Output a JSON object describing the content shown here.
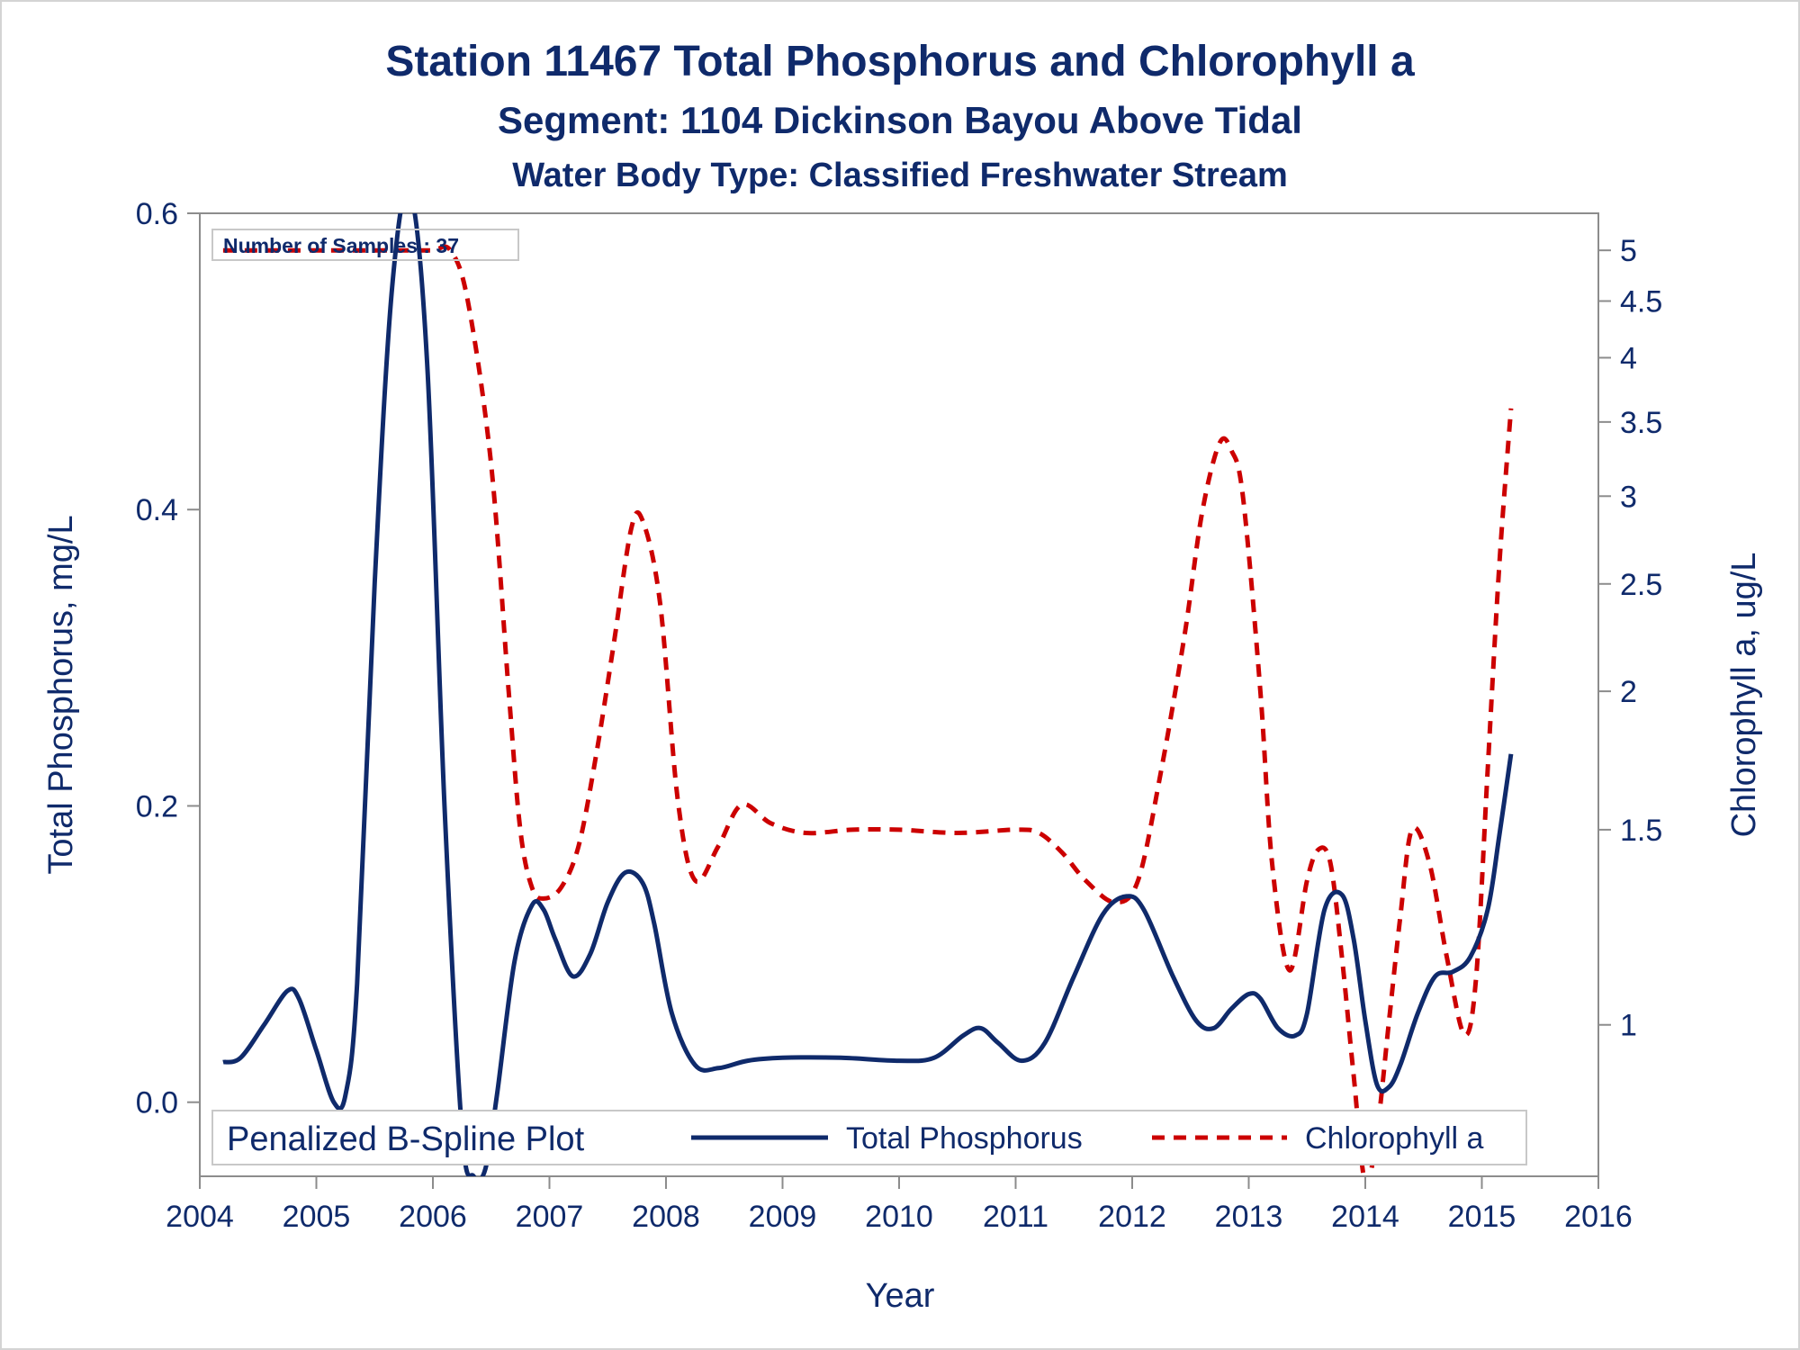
{
  "chart_data": {
    "type": "line",
    "title": "Station 11467  Total Phosphorus and Chlorophyll a",
    "subtitle": "Segment: 1104  Dickinson Bayou Above Tidal",
    "subtitle2": "Water Body Type: Classified Freshwater Stream",
    "xlabel": "Year",
    "ylabel": "Total Phosphorus, mg/L",
    "y2label": "Chlorophyll a, ug/L",
    "xlim": [
      2004,
      2016
    ],
    "ylim": [
      -0.05,
      0.6
    ],
    "y2lim": [
      0.73,
      5.4
    ],
    "y2scale": "log",
    "x_ticks": [
      "2004",
      "2005",
      "2006",
      "2007",
      "2008",
      "2009",
      "2010",
      "2011",
      "2012",
      "2013",
      "2014",
      "2015",
      "2016"
    ],
    "y_ticks": [
      "0.0",
      "0.2",
      "0.4",
      "0.6"
    ],
    "y2_ticks": [
      "1",
      "1.5",
      "2",
      "2.5",
      "3",
      "3.5",
      "4",
      "4.5",
      "5"
    ],
    "inset_label": "Number of Samples : 37",
    "legend": {
      "position": "bottom-inside",
      "title": "Penalized B-Spline Plot",
      "entries": [
        "Total Phosphorus",
        "Chlorophyll a"
      ]
    },
    "colors": {
      "total_phosphorus": "#0f2a6b",
      "chlorophyll_a": "#cc0000",
      "text": "#0f2a6b",
      "axis": "#8c8c8c"
    },
    "series": [
      {
        "name": "Total Phosphorus",
        "axis": "left",
        "style": "solid",
        "x": [
          2004.2,
          2004.35,
          2004.55,
          2004.75,
          2004.85,
          2005.0,
          2005.15,
          2005.25,
          2005.35,
          2005.5,
          2005.65,
          2005.8,
          2005.95,
          2006.1,
          2006.25,
          2006.35,
          2006.45,
          2006.55,
          2006.7,
          2006.85,
          2006.95,
          2007.05,
          2007.2,
          2007.35,
          2007.5,
          2007.65,
          2007.8,
          2007.9,
          2008.05,
          2008.25,
          2008.45,
          2008.7,
          2009.0,
          2009.5,
          2010.0,
          2010.3,
          2010.55,
          2010.7,
          2010.85,
          2011.05,
          2011.25,
          2011.5,
          2011.75,
          2011.95,
          2012.1,
          2012.35,
          2012.55,
          2012.7,
          2012.85,
          2013.0,
          2013.1,
          2013.25,
          2013.4,
          2013.5,
          2013.65,
          2013.8,
          2013.9,
          2014.0,
          2014.1,
          2014.2,
          2014.3,
          2014.45,
          2014.6,
          2014.75,
          2014.9,
          2015.05,
          2015.15,
          2015.25
        ],
        "values": [
          0.027,
          0.03,
          0.052,
          0.075,
          0.07,
          0.035,
          0.0,
          0.005,
          0.08,
          0.35,
          0.55,
          0.615,
          0.5,
          0.2,
          -0.02,
          -0.05,
          -0.045,
          0.005,
          0.095,
          0.133,
          0.13,
          0.11,
          0.085,
          0.1,
          0.135,
          0.155,
          0.148,
          0.12,
          0.06,
          0.025,
          0.023,
          0.028,
          0.03,
          0.03,
          0.028,
          0.03,
          0.045,
          0.05,
          0.04,
          0.028,
          0.04,
          0.085,
          0.127,
          0.139,
          0.13,
          0.085,
          0.055,
          0.05,
          0.063,
          0.073,
          0.07,
          0.05,
          0.045,
          0.06,
          0.13,
          0.14,
          0.11,
          0.055,
          0.012,
          0.01,
          0.025,
          0.06,
          0.085,
          0.088,
          0.098,
          0.13,
          0.18,
          0.235
        ]
      },
      {
        "name": "Chlorophyll a",
        "axis": "right",
        "style": "dashed",
        "x": [
          2004.2,
          2004.5,
          2005.0,
          2005.5,
          2005.8,
          2006.0,
          2006.15,
          2006.3,
          2006.5,
          2006.65,
          2006.75,
          2006.85,
          2006.95,
          2007.1,
          2007.25,
          2007.4,
          2007.55,
          2007.7,
          2007.8,
          2007.95,
          2008.1,
          2008.25,
          2008.45,
          2008.65,
          2008.9,
          2009.2,
          2009.6,
          2010.0,
          2010.5,
          2011.0,
          2011.2,
          2011.4,
          2011.6,
          2011.85,
          2012.05,
          2012.25,
          2012.45,
          2012.6,
          2012.75,
          2012.85,
          2012.95,
          2013.1,
          2013.2,
          2013.35,
          2013.5,
          2013.6,
          2013.7,
          2013.8,
          2013.9,
          2014.0,
          2014.1,
          2014.2,
          2014.3,
          2014.4,
          2014.55,
          2014.7,
          2014.85,
          2014.95,
          2015.05,
          2015.15,
          2015.25
        ],
        "values": [
          5.0,
          5.0,
          5.0,
          5.0,
          5.0,
          5.0,
          5.0,
          4.5,
          3.2,
          2.0,
          1.5,
          1.33,
          1.3,
          1.33,
          1.45,
          1.75,
          2.2,
          2.8,
          2.85,
          2.4,
          1.6,
          1.35,
          1.45,
          1.58,
          1.52,
          1.49,
          1.5,
          1.5,
          1.49,
          1.5,
          1.49,
          1.43,
          1.35,
          1.29,
          1.35,
          1.7,
          2.25,
          2.9,
          3.35,
          3.3,
          3.0,
          2.0,
          1.4,
          1.12,
          1.35,
          1.44,
          1.4,
          1.15,
          0.9,
          0.72,
          0.8,
          1.0,
          1.25,
          1.5,
          1.4,
          1.15,
          0.98,
          1.1,
          1.7,
          2.6,
          3.6
        ]
      }
    ]
  }
}
